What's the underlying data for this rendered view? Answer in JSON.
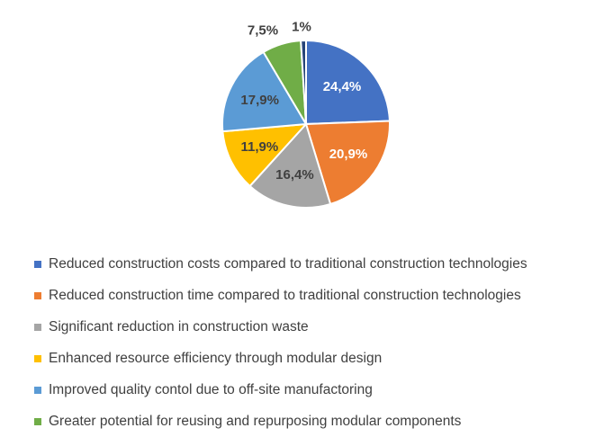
{
  "chart_data": {
    "type": "pie",
    "slices": [
      {
        "label": "Reduced construction costs compared to traditional construction technologies",
        "value": 24.4,
        "display": "24,4%",
        "color": "#4472C4",
        "text_color": "#ffffff"
      },
      {
        "label": "Reduced construction time compared to traditional construction technologies",
        "value": 20.9,
        "display": "20,9%",
        "color": "#ED7D31",
        "text_color": "#ffffff"
      },
      {
        "label": "Significant reduction in construction waste",
        "value": 16.4,
        "display": "16,4%",
        "color": "#A5A5A5",
        "text_color": "#404040"
      },
      {
        "label": "Enhanced resource efficiency through modular design",
        "value": 11.9,
        "display": "11,9%",
        "color": "#FFC000",
        "text_color": "#404040"
      },
      {
        "label": "Improved quality contol due to off-site manufactoring",
        "value": 17.9,
        "display": "17,9%",
        "color": "#5B9BD5",
        "text_color": "#404040"
      },
      {
        "label": "Greater potential for reusing and repurposing modular components",
        "value": 7.5,
        "display": "7,5%",
        "color": "#70AD47",
        "text_color": "#404040"
      },
      {
        "label": "",
        "value": 1,
        "display": "1%",
        "color": "#264478",
        "text_color": "#404040"
      }
    ],
    "start_angle": "top",
    "direction": "clockwise",
    "legend_position": "bottom"
  }
}
